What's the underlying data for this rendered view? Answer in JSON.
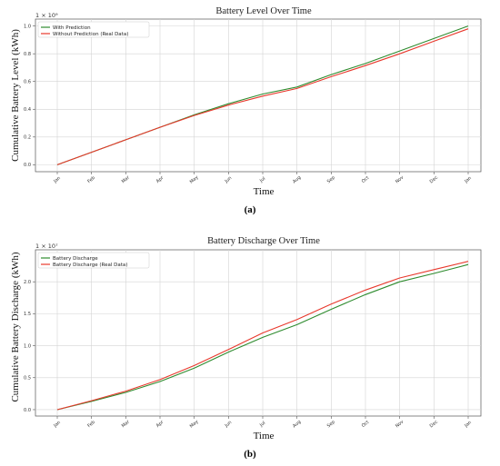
{
  "chart_data": [
    {
      "type": "line",
      "title": "Battery Level Over Time",
      "xlabel": "Time",
      "ylabel": "Cumulative Battery Level (kWh)",
      "y_multiplier": "1 × 10⁹",
      "caption": "(a)",
      "categories": [
        "Jan",
        "Feb",
        "Mar",
        "Apr",
        "May",
        "Jun",
        "Jul",
        "Aug",
        "Sep",
        "Oct",
        "Nov",
        "Dec",
        "Jan"
      ],
      "ylim": [
        -0.05,
        1.05
      ],
      "yticks": [
        "0.0",
        "0.2",
        "0.4",
        "0.6",
        "0.8",
        "1.0"
      ],
      "grid": true,
      "legend_position": "top-left",
      "series": [
        {
          "name": "With Prediction",
          "color": "#2e8b2e",
          "values": [
            0.0,
            0.09,
            0.18,
            0.27,
            0.36,
            0.44,
            0.51,
            0.56,
            0.65,
            0.73,
            0.82,
            0.91,
            1.0
          ]
        },
        {
          "name": "Without Prediction (Real Data)",
          "color": "#e8382c",
          "values": [
            0.0,
            0.09,
            0.18,
            0.27,
            0.355,
            0.43,
            0.495,
            0.55,
            0.635,
            0.715,
            0.8,
            0.89,
            0.98
          ]
        }
      ]
    },
    {
      "type": "line",
      "title": "Battery Discharge Over Time",
      "xlabel": "Time",
      "ylabel": "Cumulative Battery Discharge (kWh)",
      "y_multiplier": "1 × 10⁷",
      "caption": "(b)",
      "categories": [
        "Jan",
        "Feb",
        "Mar",
        "Apr",
        "May",
        "Jun",
        "Jul",
        "Aug",
        "Sep",
        "Oct",
        "Nov",
        "Dec",
        "Jan"
      ],
      "ylim": [
        -0.1,
        2.5
      ],
      "yticks": [
        "0.0",
        "0.5",
        "1.0",
        "1.5",
        "2.0"
      ],
      "grid": true,
      "legend_position": "top-left",
      "series": [
        {
          "name": "Battery Discharge",
          "color": "#2e8b2e",
          "values": [
            0.0,
            0.13,
            0.27,
            0.44,
            0.65,
            0.9,
            1.13,
            1.33,
            1.57,
            1.8,
            2.0,
            2.13,
            2.27
          ]
        },
        {
          "name": "Battery Discharge (Real Data)",
          "color": "#e8382c",
          "values": [
            0.0,
            0.14,
            0.29,
            0.47,
            0.69,
            0.94,
            1.2,
            1.41,
            1.65,
            1.87,
            2.06,
            2.19,
            2.32
          ]
        }
      ]
    }
  ]
}
